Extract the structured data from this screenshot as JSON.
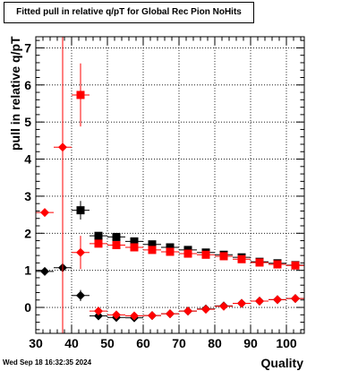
{
  "title": "Fitted pull in relative q/pT for Global Rec Pion NoHits",
  "timestamp": "Wed Sep 18 16:32:35 2024",
  "chart_data": {
    "type": "scatter",
    "title": "Fitted pull in relative q/pT for Global Rec Pion NoHits",
    "xlabel": "Quality",
    "ylabel": "pull in relative q/pT",
    "xlim": [
      30,
      105
    ],
    "ylim": [
      -0.7,
      7.3
    ],
    "xticks": [
      30,
      40,
      50,
      60,
      70,
      80,
      90,
      100
    ],
    "yticks": [
      0,
      1,
      2,
      3,
      4,
      5,
      6,
      7
    ],
    "grid": true,
    "series": [
      {
        "marker": "square",
        "color": "#000000",
        "points": [
          {
            "x": 42.5,
            "y": 2.62,
            "yerr": 0.25
          },
          {
            "x": 47.5,
            "y": 1.93,
            "yerr": 0.08
          },
          {
            "x": 52.5,
            "y": 1.9,
            "yerr": 0.07
          },
          {
            "x": 57.5,
            "y": 1.78,
            "yerr": 0.06
          },
          {
            "x": 62.5,
            "y": 1.7,
            "yerr": 0.05
          },
          {
            "x": 67.5,
            "y": 1.62,
            "yerr": 0.05
          },
          {
            "x": 72.5,
            "y": 1.55,
            "yerr": 0.05
          },
          {
            "x": 77.5,
            "y": 1.48,
            "yerr": 0.04
          },
          {
            "x": 82.5,
            "y": 1.42,
            "yerr": 0.04
          },
          {
            "x": 87.5,
            "y": 1.35,
            "yerr": 0.04
          },
          {
            "x": 92.5,
            "y": 1.23,
            "yerr": 0.04
          },
          {
            "x": 97.5,
            "y": 1.19,
            "yerr": 0.04
          },
          {
            "x": 102.5,
            "y": 1.14,
            "yerr": 0.04
          }
        ]
      },
      {
        "marker": "square",
        "color": "#ff0000",
        "points": [
          {
            "x": 42.5,
            "y": 5.73,
            "yerr": 0.85
          },
          {
            "x": 47.5,
            "y": 1.72,
            "yerr": 0.08
          },
          {
            "x": 52.5,
            "y": 1.68,
            "yerr": 0.07
          },
          {
            "x": 57.5,
            "y": 1.62,
            "yerr": 0.06
          },
          {
            "x": 62.5,
            "y": 1.55,
            "yerr": 0.05
          },
          {
            "x": 67.5,
            "y": 1.5,
            "yerr": 0.05
          },
          {
            "x": 72.5,
            "y": 1.45,
            "yerr": 0.05
          },
          {
            "x": 77.5,
            "y": 1.42,
            "yerr": 0.04
          },
          {
            "x": 82.5,
            "y": 1.38,
            "yerr": 0.04
          },
          {
            "x": 87.5,
            "y": 1.3,
            "yerr": 0.04
          },
          {
            "x": 92.5,
            "y": 1.21,
            "yerr": 0.04
          },
          {
            "x": 97.5,
            "y": 1.16,
            "yerr": 0.04
          },
          {
            "x": 102.5,
            "y": 1.13,
            "yerr": 0.04
          }
        ]
      },
      {
        "marker": "diamond",
        "color": "#000000",
        "points": [
          {
            "x": 32.5,
            "y": 0.97,
            "yerr": 0.05
          },
          {
            "x": 37.5,
            "y": 1.07,
            "yerr": 0.08
          },
          {
            "x": 42.5,
            "y": 0.32,
            "yerr": 0.15
          },
          {
            "x": 47.5,
            "y": -0.23,
            "yerr": 0.05
          },
          {
            "x": 52.5,
            "y": -0.27,
            "yerr": 0.04
          },
          {
            "x": 57.5,
            "y": -0.28,
            "yerr": 0.04
          },
          {
            "x": 62.5,
            "y": -0.22,
            "yerr": 0.03
          },
          {
            "x": 67.5,
            "y": -0.17,
            "yerr": 0.03
          },
          {
            "x": 72.5,
            "y": -0.1,
            "yerr": 0.03
          },
          {
            "x": 77.5,
            "y": -0.04,
            "yerr": 0.03
          },
          {
            "x": 82.5,
            "y": 0.04,
            "yerr": 0.03
          },
          {
            "x": 87.5,
            "y": 0.11,
            "yerr": 0.03
          },
          {
            "x": 92.5,
            "y": 0.17,
            "yerr": 0.03
          },
          {
            "x": 97.5,
            "y": 0.21,
            "yerr": 0.03
          },
          {
            "x": 102.5,
            "y": 0.24,
            "yerr": 0.03
          }
        ]
      },
      {
        "marker": "diamond",
        "color": "#ff0000",
        "points": [
          {
            "x": 32.5,
            "y": 2.56,
            "yerr": 0.05
          },
          {
            "x": 37.5,
            "y": 4.32,
            "yerr": 9.0
          },
          {
            "x": 42.5,
            "y": 1.48,
            "yerr": 0.45
          },
          {
            "x": 47.5,
            "y": -0.1,
            "yerr": 0.05
          },
          {
            "x": 52.5,
            "y": -0.2,
            "yerr": 0.04
          },
          {
            "x": 57.5,
            "y": -0.23,
            "yerr": 0.04
          },
          {
            "x": 62.5,
            "y": -0.22,
            "yerr": 0.03
          },
          {
            "x": 67.5,
            "y": -0.17,
            "yerr": 0.03
          },
          {
            "x": 72.5,
            "y": -0.1,
            "yerr": 0.03
          },
          {
            "x": 77.5,
            "y": -0.05,
            "yerr": 0.03
          },
          {
            "x": 82.5,
            "y": 0.03,
            "yerr": 0.03
          },
          {
            "x": 87.5,
            "y": 0.11,
            "yerr": 0.03
          },
          {
            "x": 92.5,
            "y": 0.17,
            "yerr": 0.03
          },
          {
            "x": 97.5,
            "y": 0.21,
            "yerr": 0.03
          },
          {
            "x": 102.5,
            "y": 0.24,
            "yerr": 0.03
          }
        ]
      }
    ]
  }
}
